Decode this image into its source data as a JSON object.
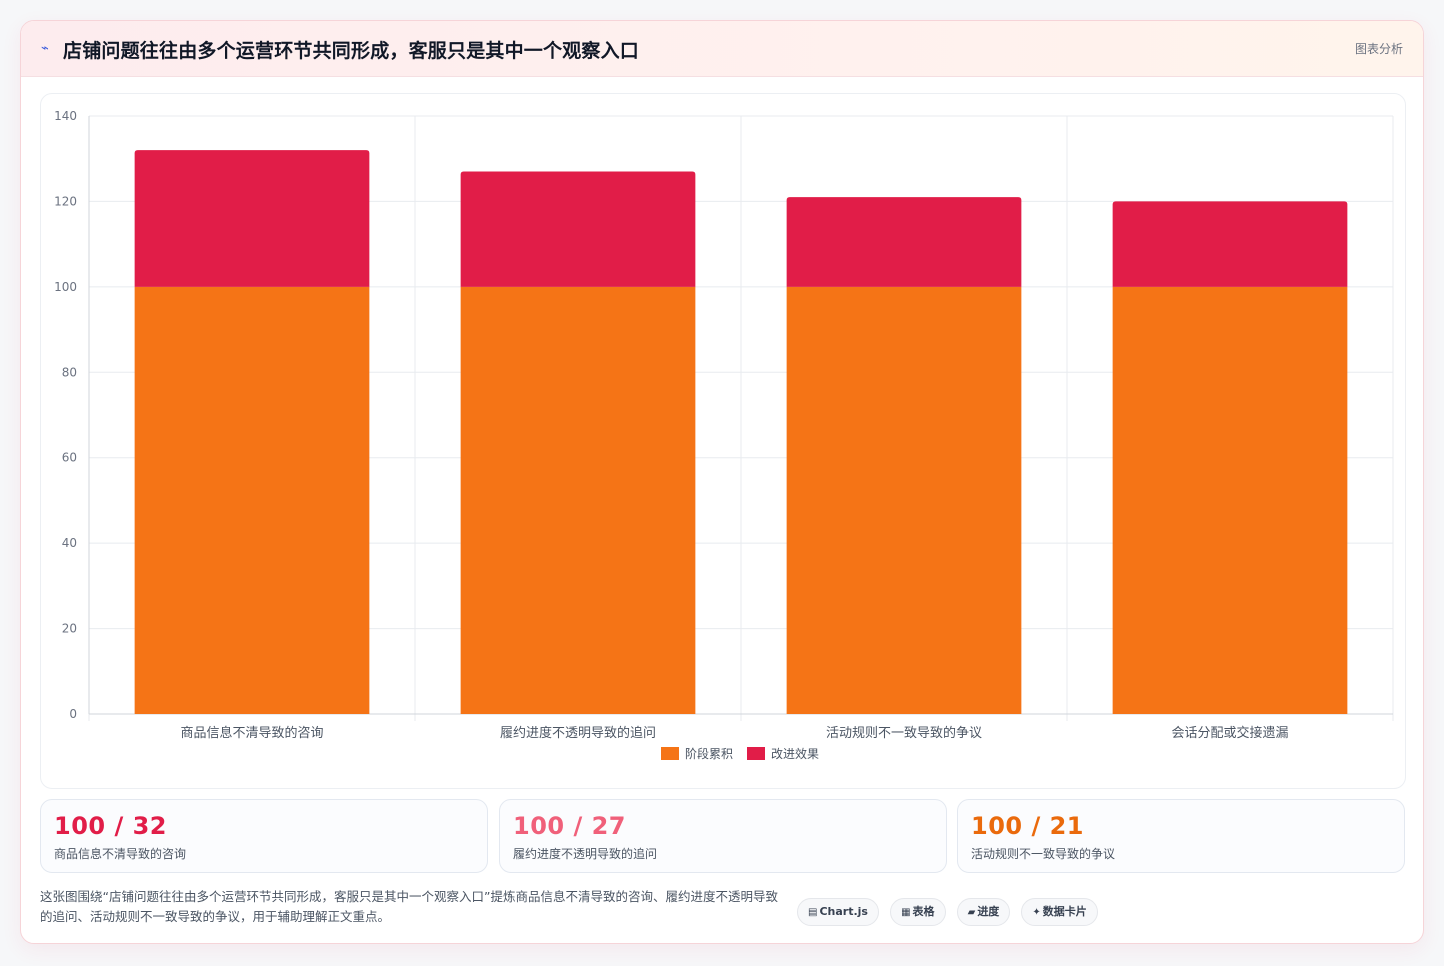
{
  "header": {
    "icon": "trend-line-icon",
    "title": "店铺问题往往由多个运营环节共同形成，客服只是其中一个观察入口",
    "tag": "图表分析"
  },
  "chart_data": {
    "type": "bar",
    "stacked": true,
    "categories": [
      "商品信息不清导致的咨询",
      "履约进度不透明导致的追问",
      "活动规则不一致导致的争议",
      "会话分配或交接遗漏"
    ],
    "series": [
      {
        "name": "阶段累积",
        "values": [
          100,
          100,
          100,
          100
        ],
        "color": "#f57416"
      },
      {
        "name": "改进效果",
        "values": [
          32,
          27,
          21,
          20
        ],
        "color": "#e11d48"
      }
    ],
    "ylim": [
      0,
      140
    ],
    "yticks": [
      0,
      20,
      40,
      60,
      80,
      100,
      120,
      140
    ],
    "grid": true,
    "legend_position": "bottom"
  },
  "stats": [
    {
      "value": "100 / 32",
      "label": "商品信息不清导致的咨询",
      "color": "#e11d48"
    },
    {
      "value": "100 / 27",
      "label": "履约进度不透明导致的追问",
      "color": "#f0607a"
    },
    {
      "value": "100 / 21",
      "label": "活动规则不一致导致的争议",
      "color": "#ea6a0c"
    }
  ],
  "description": "这张图围绕“店铺问题往往由多个运营环节共同形成，客服只是其中一个观察入口”提炼商品信息不清导致的咨询、履约进度不透明导致的追问、活动规则不一致导致的争议，用于辅助理解正文重点。",
  "chips": [
    {
      "icon": "▤",
      "icon_name": "chart-icon",
      "label": "Chart.js"
    },
    {
      "icon": "▦",
      "icon_name": "table-icon",
      "label": "表格"
    },
    {
      "icon": "▰",
      "icon_name": "progress-icon",
      "label": "进度"
    },
    {
      "icon": "✦",
      "icon_name": "sparkle-icon",
      "label": "数据卡片"
    }
  ]
}
